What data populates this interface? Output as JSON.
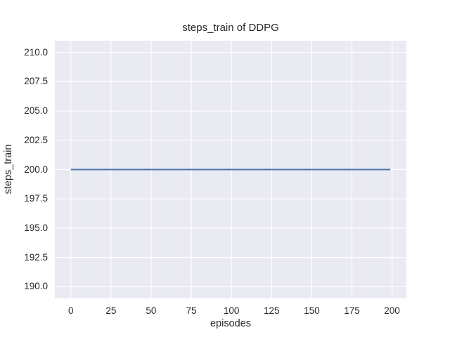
{
  "chart_data": {
    "type": "line",
    "title": "steps_train of DDPG",
    "xlabel": "episodes",
    "ylabel": "steps_train",
    "series": [
      {
        "name": "steps_train",
        "color": "#4C72B0",
        "x": [
          0,
          199
        ],
        "values": [
          200,
          200
        ],
        "note": "constant value 200 for all episodes 0-199"
      }
    ],
    "xticks": [
      {
        "value": 0,
        "label": "0"
      },
      {
        "value": 25,
        "label": "25"
      },
      {
        "value": 50,
        "label": "50"
      },
      {
        "value": 75,
        "label": "75"
      },
      {
        "value": 100,
        "label": "100"
      },
      {
        "value": 125,
        "label": "125"
      },
      {
        "value": 150,
        "label": "150"
      },
      {
        "value": 175,
        "label": "175"
      },
      {
        "value": 200,
        "label": "200"
      }
    ],
    "yticks": [
      {
        "value": 190.0,
        "label": "190.0"
      },
      {
        "value": 192.5,
        "label": "192.5"
      },
      {
        "value": 195.0,
        "label": "195.0"
      },
      {
        "value": 197.5,
        "label": "197.5"
      },
      {
        "value": 200.0,
        "label": "200.0"
      },
      {
        "value": 202.5,
        "label": "202.5"
      },
      {
        "value": 205.0,
        "label": "205.0"
      },
      {
        "value": 207.5,
        "label": "207.5"
      },
      {
        "value": 210.0,
        "label": "210.0"
      }
    ],
    "xlim": [
      -9.95,
      208.95
    ],
    "ylim": [
      189.0,
      211.0
    ],
    "grid": true,
    "legend": "none",
    "style": {
      "figure_bg": "#FFFFFF",
      "plot_bg": "#EAEAF2",
      "grid_color": "#FFFFFF",
      "text_color": "#262626",
      "line_width": 2
    }
  }
}
